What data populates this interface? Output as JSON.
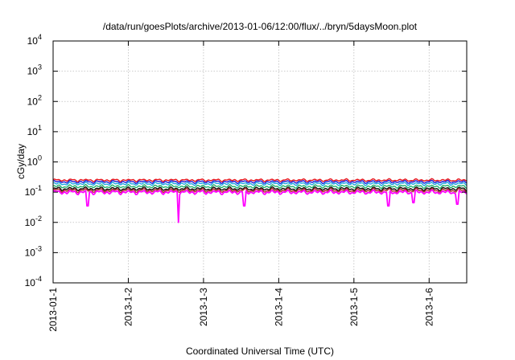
{
  "chart_data": {
    "type": "line",
    "title": "/data/run/goesPlots/archive/2013-01-06/12:00/flux/../bryn/5daysMoon.plot",
    "xlabel": "Coordinated Universal Time (UTC)",
    "ylabel": "cGy/day",
    "yscale": "log",
    "ylim": [
      0.0001,
      10000
    ],
    "y_ticks": [
      {
        "value": 0.0001,
        "base": "10",
        "exp": "-4"
      },
      {
        "value": 0.001,
        "base": "10",
        "exp": "-3"
      },
      {
        "value": 0.01,
        "base": "10",
        "exp": "-2"
      },
      {
        "value": 0.1,
        "base": "10",
        "exp": "-1"
      },
      {
        "value": 1,
        "base": "10",
        "exp": "0"
      },
      {
        "value": 10,
        "base": "10",
        "exp": "1"
      },
      {
        "value": 100,
        "base": "10",
        "exp": "2"
      },
      {
        "value": 1000,
        "base": "10",
        "exp": "3"
      },
      {
        "value": 10000,
        "base": "10",
        "exp": "4"
      }
    ],
    "xlim": [
      "2013-01-01",
      "2013-01-06 12:00"
    ],
    "x_ticks": [
      {
        "value": "2013-01-01",
        "label": "2013-01-1"
      },
      {
        "value": "2013-01-02",
        "label": "2013-1-2"
      },
      {
        "value": "2013-01-03",
        "label": "2013-1-3"
      },
      {
        "value": "2013-01-04",
        "label": "2013-1-4"
      },
      {
        "value": "2013-01-05",
        "label": "2013-1-5"
      },
      {
        "value": "2013-01-06",
        "label": "2013-1-6"
      }
    ],
    "grid": true,
    "legend": "none",
    "series": [
      {
        "color": "#e8141c",
        "base": 0.25
      },
      {
        "color": "#1f1fd6",
        "base": 0.22
      },
      {
        "color": "#1fa8e0",
        "base": 0.19
      },
      {
        "color": "#23b26c",
        "base": 0.155
      },
      {
        "color": "#101010",
        "base": 0.13
      },
      {
        "color": "#b02a2a",
        "base": 0.115
      },
      {
        "color": "#ff00ff",
        "base": 0.1
      }
    ],
    "dips": [
      {
        "x": "2013-01-01 11:00",
        "y": 0.035
      },
      {
        "x": "2013-01-02 16:00",
        "y": 0.01
      },
      {
        "x": "2013-01-03 13:00",
        "y": 0.035
      },
      {
        "x": "2013-01-05 11:00",
        "y": 0.035
      },
      {
        "x": "2013-01-05 19:00",
        "y": 0.045
      },
      {
        "x": "2013-01-06 09:00",
        "y": 0.04
      }
    ]
  }
}
